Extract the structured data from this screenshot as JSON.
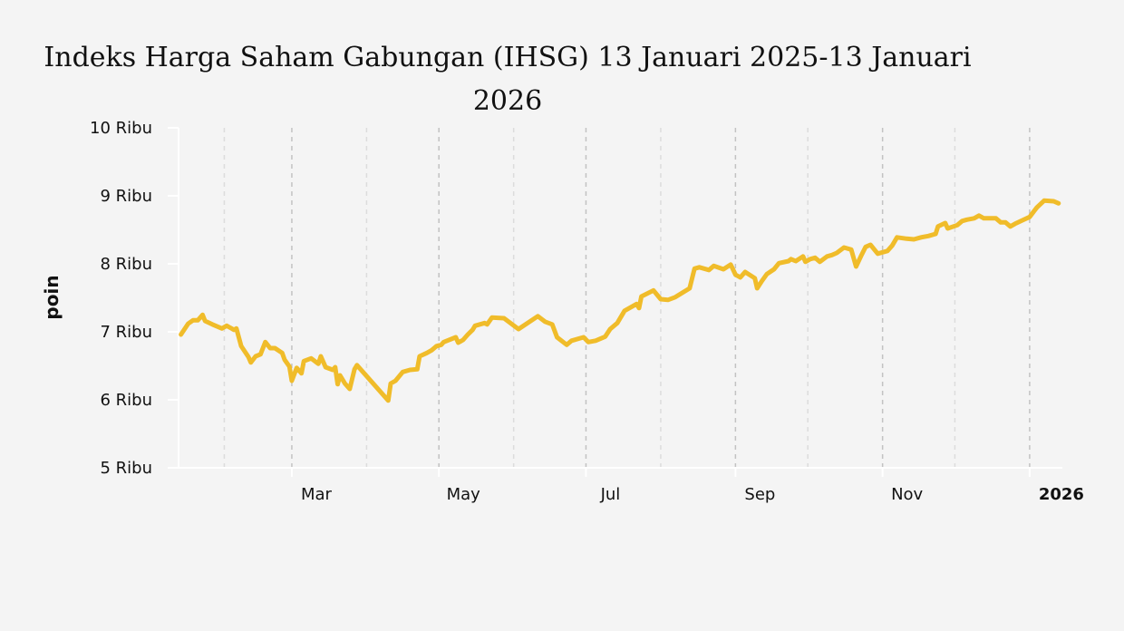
{
  "chart_data": {
    "type": "line",
    "title": "Indeks Harga Saham Gabungan (IHSG) 13 Januari 2025-13 Januari 2026",
    "title_lines": [
      "Indeks Harga Saham Gabungan (IHSG) 13 Januari 2025-13 Januari",
      "2026"
    ],
    "xlabel": "",
    "ylabel": "poin",
    "x_unit": "days since 1 Jan 2025",
    "xlim": [
      0,
      380
    ],
    "ylim": [
      5000,
      10000
    ],
    "grid": "vertical dashed",
    "yticks": [
      {
        "value": 10000,
        "label": "10 Ribu"
      },
      {
        "value": 9000,
        "label": "9 Ribu"
      },
      {
        "value": 8000,
        "label": "8 Ribu"
      },
      {
        "value": 7000,
        "label": "7 Ribu"
      },
      {
        "value": 6000,
        "label": "6 Ribu"
      },
      {
        "value": 5000,
        "label": "5 Ribu"
      }
    ],
    "xticks": [
      {
        "value": 59,
        "label": "Mar",
        "bold": false
      },
      {
        "value": 120,
        "label": "May",
        "bold": false
      },
      {
        "value": 181,
        "label": "Jul",
        "bold": false
      },
      {
        "value": 243,
        "label": "Sep",
        "bold": false
      },
      {
        "value": 304,
        "label": "Nov",
        "bold": false
      },
      {
        "value": 365,
        "label": "2026",
        "bold": true
      }
    ],
    "minor_grid": [
      31,
      90,
      151,
      212,
      273,
      334
    ],
    "series": [
      {
        "name": "IHSG",
        "color": "#f0bc2a",
        "x": [
          13,
          16,
          18,
          20,
          22,
          23,
          26,
          30,
          32,
          35,
          36,
          38,
          41,
          42,
          44,
          46,
          48,
          50,
          52,
          55,
          56,
          58,
          59,
          61,
          63,
          64,
          67,
          70,
          71,
          73,
          76,
          77,
          78,
          79,
          81,
          83,
          85,
          86,
          99,
          100,
          102,
          105,
          108,
          111,
          112,
          115,
          117,
          119,
          121,
          122,
          127,
          128,
          130,
          132,
          134,
          135,
          139,
          140,
          142,
          147,
          153,
          161,
          164,
          167,
          169,
          173,
          175,
          180,
          182,
          185,
          189,
          191,
          194,
          197,
          202,
          203,
          204,
          209,
          212,
          215,
          218,
          224,
          226,
          228,
          232,
          234,
          238,
          241,
          243,
          245,
          247,
          251,
          252,
          254,
          256,
          259,
          261,
          265,
          266,
          268,
          271,
          272,
          274,
          276,
          278,
          281,
          283,
          285,
          288,
          291,
          293,
          295,
          297,
          299,
          302,
          304,
          306,
          308,
          310,
          314,
          317,
          320,
          323,
          326,
          327,
          330,
          331,
          335,
          337,
          339,
          342,
          344,
          346,
          351,
          353,
          355,
          357,
          359,
          362,
          365,
          368,
          371,
          375,
          377
        ],
        "values": [
          6960,
          7120,
          7170,
          7170,
          7250,
          7160,
          7110,
          7050,
          7090,
          7030,
          7050,
          6790,
          6630,
          6550,
          6640,
          6670,
          6850,
          6760,
          6760,
          6690,
          6590,
          6490,
          6280,
          6470,
          6390,
          6570,
          6610,
          6530,
          6640,
          6480,
          6440,
          6480,
          6230,
          6360,
          6240,
          6160,
          6450,
          6510,
          5990,
          6240,
          6280,
          6410,
          6440,
          6450,
          6640,
          6690,
          6730,
          6790,
          6810,
          6850,
          6920,
          6840,
          6880,
          6960,
          7030,
          7090,
          7130,
          7110,
          7210,
          7200,
          7040,
          7230,
          7150,
          7110,
          6920,
          6810,
          6870,
          6920,
          6850,
          6870,
          6930,
          7040,
          7130,
          7310,
          7410,
          7350,
          7520,
          7610,
          7480,
          7470,
          7510,
          7640,
          7930,
          7950,
          7910,
          7970,
          7920,
          7990,
          7840,
          7800,
          7880,
          7790,
          7640,
          7750,
          7850,
          7920,
          8010,
          8040,
          8070,
          8040,
          8110,
          8030,
          8070,
          8090,
          8030,
          8110,
          8130,
          8160,
          8240,
          8210,
          7960,
          8110,
          8250,
          8280,
          8150,
          8170,
          8190,
          8270,
          8390,
          8370,
          8360,
          8390,
          8410,
          8440,
          8550,
          8600,
          8520,
          8570,
          8630,
          8650,
          8670,
          8710,
          8670,
          8670,
          8610,
          8610,
          8550,
          8590,
          8640,
          8690,
          8830,
          8930,
          8920,
          8890
        ]
      }
    ]
  }
}
